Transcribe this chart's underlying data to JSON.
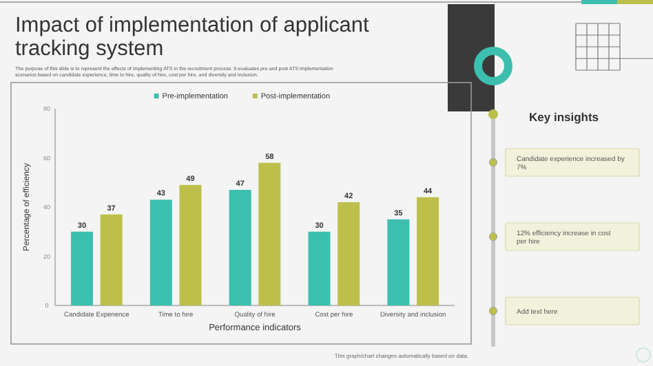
{
  "chart_data": {
    "type": "bar",
    "title": "Impact of implementation of applicant tracking system",
    "subtitle": "The purpose of this slide is to represent the effects of implementing ATS in the recruitment process. It evaluates pre and post ATS implementation scenarios based on candidate experience, time to hire, quality of hire, cost per hire, and diversity and inclusion.",
    "xlabel": "Performance indicators",
    "ylabel": "Percentage of efficiency",
    "categories": [
      "Candidate Experience",
      "Time to hire",
      "Quality of hire",
      "Cost per hire",
      "Diversity and inclusion"
    ],
    "series": [
      {
        "name": "Pre-implementation",
        "color": "#3cbfae",
        "values": [
          30,
          43,
          47,
          30,
          35
        ]
      },
      {
        "name": "Post-implementation",
        "color": "#bcc04a",
        "values": [
          37,
          49,
          58,
          42,
          44
        ]
      }
    ],
    "ylim": [
      0,
      80
    ],
    "yticks": [
      0,
      20,
      40,
      60,
      80
    ],
    "data_labels": true,
    "legend": "top",
    "grid": false,
    "annotations": [
      "This graph/chart changes automatically based on data.",
      "Key insights",
      "Candidate experience increased by 7%",
      "12% efficiency increase in cost per hire",
      "Add text here"
    ]
  }
}
